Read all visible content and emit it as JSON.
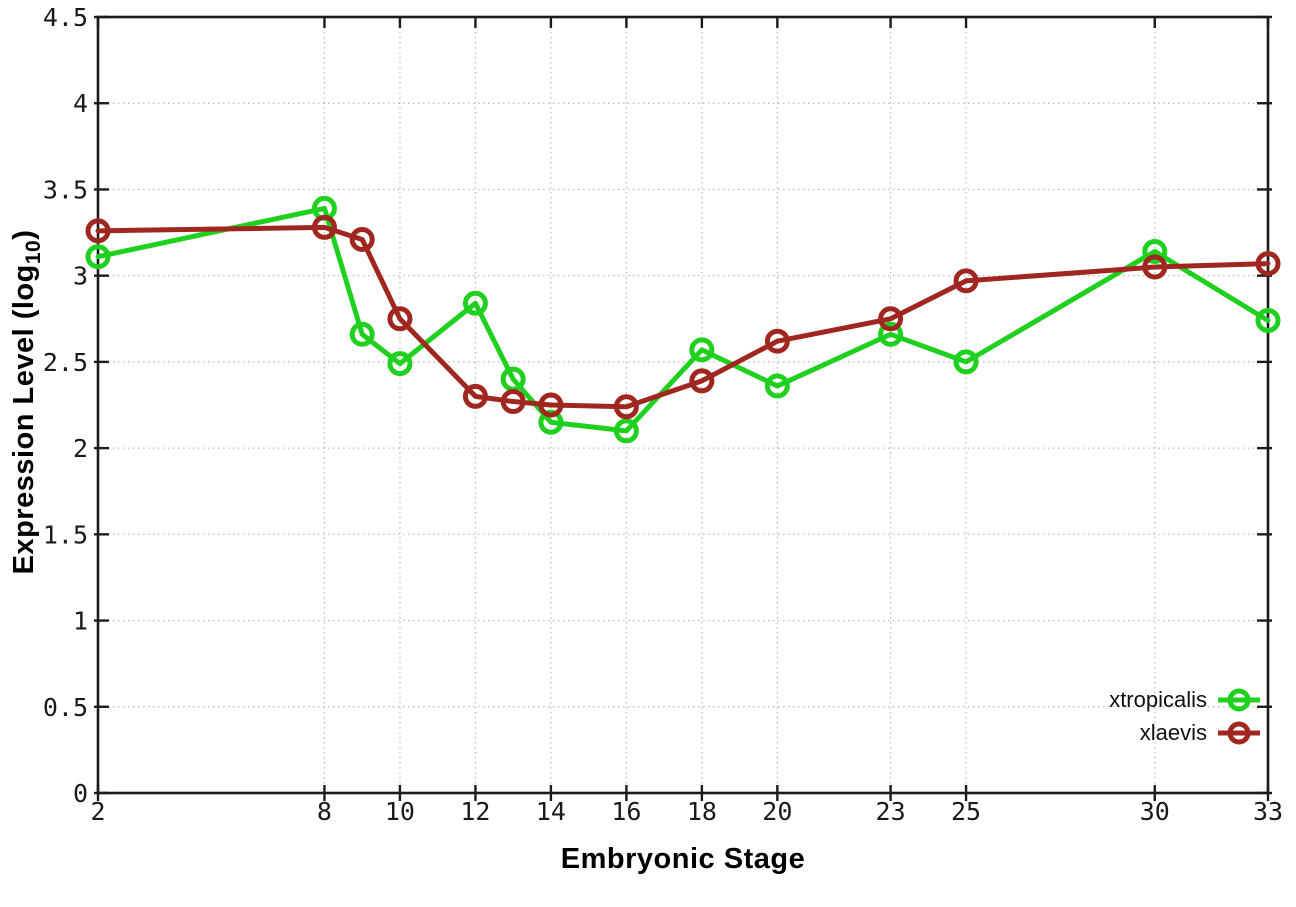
{
  "figure": {
    "background": "#ffffff",
    "border_color": "#1c1c1c",
    "grid_color": "#b8b8b8",
    "tick_label_color": "#1a1a1a"
  },
  "chart_data": {
    "type": "line",
    "title": "",
    "xlabel": "Embryonic Stage",
    "ylabel": "Expression Level (log10)",
    "ylabel_parts": {
      "prefix": "Expression Level (log",
      "sub": "10",
      "suffix": ")"
    },
    "xlim": [
      2,
      33
    ],
    "ylim": [
      0,
      4.5
    ],
    "grid": true,
    "legend_position": "bottom-right",
    "x_tick_values": [
      2,
      8,
      10,
      12,
      14,
      16,
      18,
      20,
      23,
      25,
      30,
      33
    ],
    "x_tick_labels": [
      "2",
      "8",
      "10",
      "12",
      "14",
      "16",
      "18",
      "20",
      "23",
      "25",
      "30",
      "33"
    ],
    "y_tick_values": [
      0,
      0.5,
      1,
      1.5,
      2,
      2.5,
      3,
      3.5,
      4,
      4.5
    ],
    "y_tick_labels": [
      "0",
      "0.5",
      "1",
      "1.5",
      "2",
      "2.5",
      "3",
      "3.5",
      "4",
      "4.5"
    ],
    "x": [
      2,
      8,
      9,
      10,
      12,
      13,
      14,
      16,
      18,
      20,
      23,
      25,
      30,
      33
    ],
    "series": [
      {
        "name": "xtropicalis",
        "color": "#1fd01f",
        "marker": "open-circle",
        "values": [
          3.11,
          3.39,
          2.66,
          2.49,
          2.84,
          2.4,
          2.15,
          2.1,
          2.57,
          2.36,
          2.66,
          2.5,
          3.14,
          2.74
        ]
      },
      {
        "name": "xlaevis",
        "color": "#a0271f",
        "marker": "open-circle",
        "values": [
          3.26,
          3.28,
          3.21,
          2.75,
          2.3,
          2.27,
          2.25,
          2.24,
          2.39,
          2.62,
          2.75,
          2.97,
          3.05,
          3.07
        ]
      }
    ]
  }
}
